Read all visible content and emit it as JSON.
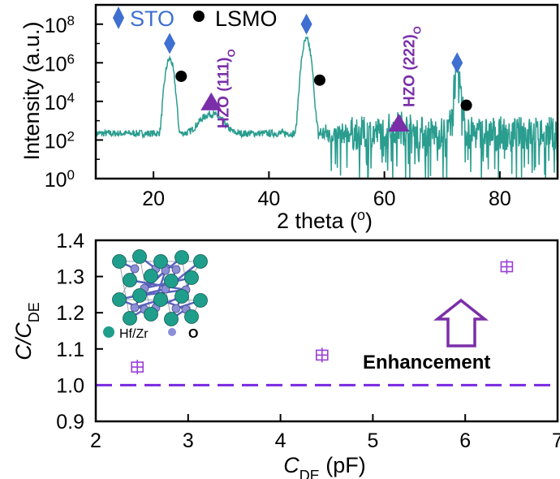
{
  "chart_data": [
    {
      "type": "line",
      "panel": "top",
      "xlabel": "2 theta (o)",
      "xlabel_main": "2 theta (",
      "xlabel_sup": "o",
      "xlabel_close": ")",
      "ylabel": "Intensity (a.u.)",
      "xlim": [
        10,
        90
      ],
      "ylim_log10": [
        0,
        9
      ],
      "y_scale": "log",
      "x_ticks": [
        20,
        40,
        60,
        80
      ],
      "y_ticks_exp": [
        0,
        2,
        4,
        6,
        8
      ],
      "y_tick_base": "10",
      "line_color": "#2a9d8f",
      "peaks": [
        {
          "x": 22.8,
          "y_log10": 6.2
        },
        {
          "x": 30.0,
          "y_log10": 3.3
        },
        {
          "x": 46.5,
          "y_log10": 7.2
        },
        {
          "x": 62.5,
          "y_log10": 2.4
        },
        {
          "x": 72.6,
          "y_log10": 5.2
        }
      ],
      "legend": {
        "sto_label": "STO",
        "sto_color": "#3f6fd1",
        "sto_marker": "diamond",
        "lsmo_label": "LSMO",
        "lsmo_marker": "filled-circle"
      },
      "sto_markers": [
        {
          "x": 22.8,
          "y_log10": 7.0
        },
        {
          "x": 46.5,
          "y_log10": 8.0
        },
        {
          "x": 72.6,
          "y_log10": 6.0
        }
      ],
      "lsmo_markers": [
        {
          "x": 24.8,
          "y_log10": 5.3
        },
        {
          "x": 48.8,
          "y_log10": 5.1
        },
        {
          "x": 74.2,
          "y_log10": 3.8
        }
      ],
      "hzo_annotations": [
        {
          "prefix": "HZO (111)",
          "sub": "O",
          "x": 33.0,
          "y_log10": 2.6
        },
        {
          "prefix": "HZO (222)",
          "sub": "O",
          "x": 65.2,
          "y_log10": 3.7
        }
      ],
      "hzo_triangles": [
        {
          "x": 30.0,
          "y_log10": 4.0
        },
        {
          "x": 62.5,
          "y_log10": 2.9
        }
      ],
      "hzo_color": "#7a2fa8"
    },
    {
      "type": "scatter",
      "panel": "bottom",
      "xlabel_main": "C",
      "xlabel_sub": "DE",
      "xlabel_unit": " (pF)",
      "ylabel_main": "C/C",
      "ylabel_sub": "DE",
      "xlim": [
        2,
        7
      ],
      "ylim": [
        0.9,
        1.4
      ],
      "x_ticks": [
        2,
        3,
        4,
        5,
        6,
        7
      ],
      "y_ticks": [
        0.9,
        1.0,
        1.1,
        1.2,
        1.3,
        1.4
      ],
      "y_tick_labels": [
        "0.9",
        "1.0",
        "1.1",
        "1.2",
        "1.3",
        "1.4"
      ],
      "points": [
        {
          "x": 2.45,
          "y": 1.05
        },
        {
          "x": 4.45,
          "y": 1.083
        },
        {
          "x": 6.45,
          "y": 1.327
        }
      ],
      "point_color": "#9a3fd8",
      "reference_line": {
        "y": 1.0,
        "style": "dashed",
        "color": "#7a2ae0"
      },
      "annotation": "Enhancement",
      "arrow_color": "#7a2fa8",
      "inset_legend": {
        "hf_zr_label": "Hf/Zr",
        "o_label": "O",
        "hf_color": "#1f9e8c",
        "o_color": "#8c8fd6"
      }
    }
  ]
}
